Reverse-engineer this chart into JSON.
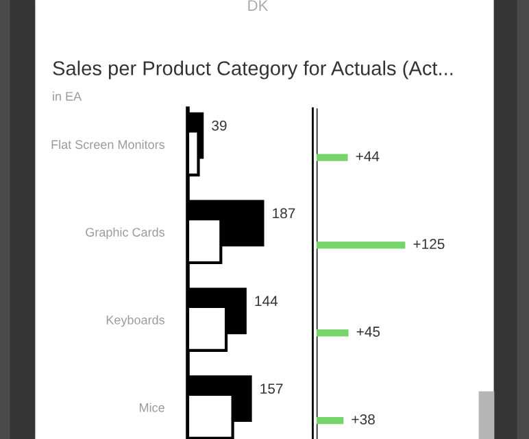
{
  "chart_data": [
    {
      "type": "bar",
      "orientation": "horizontal",
      "title": "Sales per Product Category for Actuals (Act...",
      "subtitle": "in EA",
      "annotations": [
        "DK"
      ],
      "categories": [
        "Flat Screen Monitors",
        "Graphic Cards",
        "Keyboards",
        "Mice"
      ],
      "tick_labels": "y",
      "series": [
        {
          "color": "#000000",
          "values": [
            39,
            187,
            144,
            157
          ],
          "value_labels": [
            "39",
            "187",
            "144",
            "157"
          ]
        },
        {
          "color": "#ffffff",
          "values": [
            26,
            81,
            94,
            110
          ]
        }
      ]
    },
    {
      "type": "bar",
      "orientation": "horizontal",
      "categories": [
        null,
        null,
        null,
        null
      ],
      "tick_labels": false,
      "series": [
        {
          "color": "#77d46a",
          "values": [
            44,
            125,
            45,
            38
          ],
          "value_labels": [
            "+44",
            "+125",
            "+45",
            "+38"
          ]
        }
      ]
    }
  ]
}
